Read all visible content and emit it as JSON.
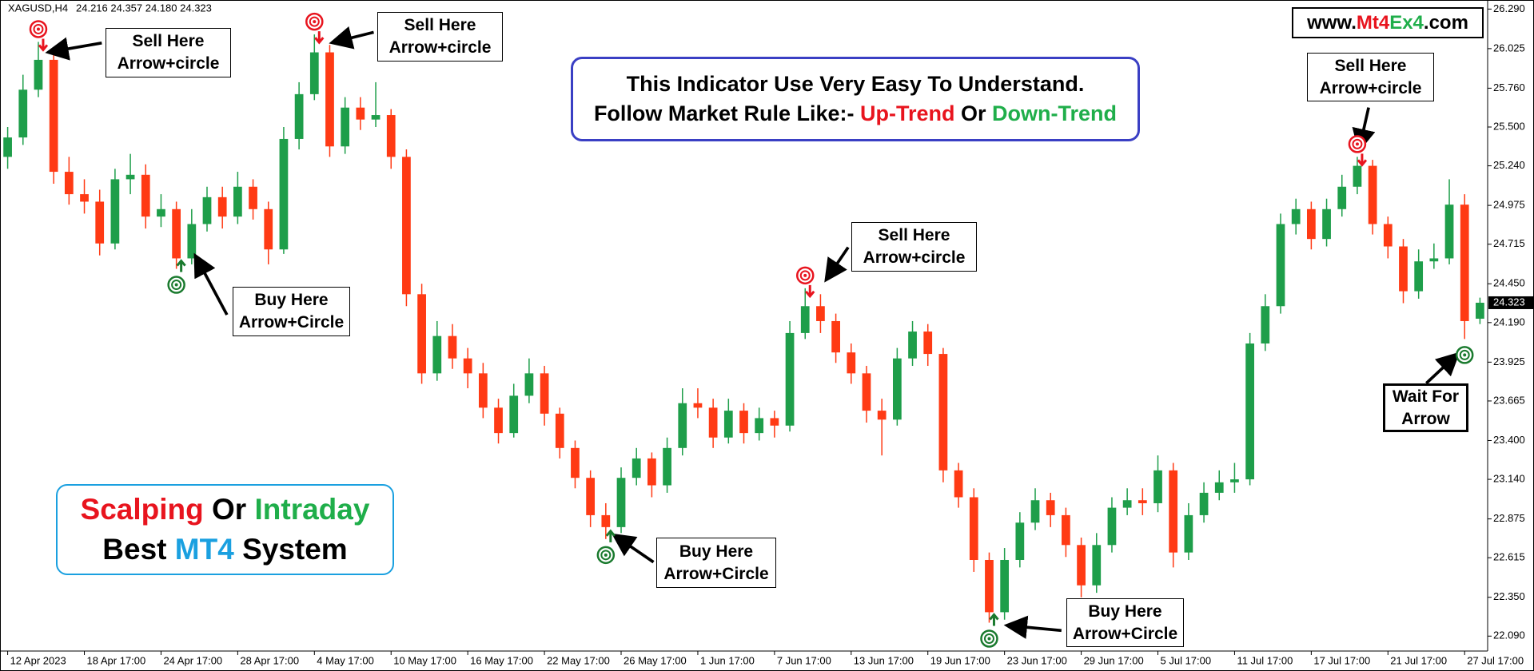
{
  "chart_data": {
    "type": "candlestick",
    "header": {
      "symbol": "XAGUSD,H4",
      "ohlc": "24.216 24.357 24.180 24.323"
    },
    "x": [
      "12 Apr 2023",
      null,
      null,
      null,
      null,
      "18 Apr 17:00",
      null,
      null,
      null,
      null,
      "24 Apr 17:00",
      null,
      null,
      null,
      null,
      "28 Apr 17:00",
      null,
      null,
      null,
      null,
      "4 May 17:00",
      null,
      null,
      null,
      null,
      "10 May 17:00",
      null,
      null,
      null,
      null,
      "16 May 17:00",
      null,
      null,
      null,
      null,
      "22 May 17:00",
      null,
      null,
      null,
      null,
      "26 May 17:00",
      null,
      null,
      null,
      null,
      "1 Jun 17:00",
      null,
      null,
      null,
      null,
      "7 Jun 17:00",
      null,
      null,
      null,
      null,
      "13 Jun 17:00",
      null,
      null,
      null,
      null,
      "19 Jun 17:00",
      null,
      null,
      null,
      null,
      "23 Jun 17:00",
      null,
      null,
      null,
      null,
      "29 Jun 17:00",
      null,
      null,
      null,
      null,
      "5 Jul 17:00",
      null,
      null,
      null,
      null,
      "11 Jul 17:00",
      null,
      null,
      null,
      null,
      "17 Jul 17:00",
      null,
      null,
      null,
      null,
      "21 Jul 17:00",
      null,
      null,
      null,
      null,
      "27 Jul 17:00",
      null
    ],
    "open": [
      25.3,
      25.43,
      25.75,
      25.95,
      25.2,
      25.05,
      25.0,
      24.72,
      25.15,
      25.18,
      24.9,
      24.95,
      24.62,
      24.85,
      25.03,
      24.9,
      25.1,
      24.95,
      24.68,
      25.42,
      25.72,
      26.0,
      25.37,
      25.63,
      25.55,
      25.58,
      25.3,
      24.38,
      23.85,
      24.1,
      23.95,
      23.85,
      23.62,
      23.45,
      23.7,
      23.85,
      23.58,
      23.35,
      23.15,
      22.9,
      22.82,
      23.15,
      23.28,
      23.1,
      23.35,
      23.65,
      23.62,
      23.42,
      23.6,
      23.45,
      23.55,
      23.5,
      24.12,
      24.3,
      24.2,
      23.99,
      23.85,
      23.6,
      23.54,
      23.95,
      24.13,
      23.98,
      23.2,
      23.02,
      22.6,
      22.25,
      22.6,
      22.85,
      23.0,
      22.9,
      22.7,
      22.43,
      22.7,
      22.95,
      23.0,
      22.98,
      23.2,
      22.65,
      22.9,
      23.05,
      23.12,
      23.14,
      24.05,
      24.3,
      24.85,
      24.95,
      24.75,
      24.95,
      25.1,
      25.24,
      24.85,
      24.7,
      24.4,
      24.6,
      24.62,
      24.98,
      24.216
    ],
    "high": [
      25.5,
      25.85,
      26.07,
      26.0,
      25.3,
      25.15,
      25.08,
      25.22,
      25.32,
      25.25,
      25.05,
      25.0,
      24.95,
      25.1,
      25.1,
      25.2,
      25.15,
      25.0,
      25.5,
      25.8,
      26.12,
      26.05,
      25.7,
      25.7,
      25.8,
      25.62,
      25.35,
      24.45,
      24.2,
      24.18,
      24.02,
      23.92,
      23.68,
      23.78,
      23.95,
      23.9,
      23.62,
      23.4,
      23.2,
      22.98,
      23.22,
      23.35,
      23.32,
      23.42,
      23.75,
      23.75,
      23.68,
      23.68,
      23.65,
      23.62,
      23.6,
      24.2,
      24.42,
      24.38,
      24.25,
      24.05,
      23.9,
      23.68,
      24.02,
      24.2,
      24.18,
      24.02,
      23.25,
      23.08,
      22.65,
      22.68,
      22.92,
      23.08,
      23.05,
      22.95,
      22.75,
      22.78,
      23.02,
      23.08,
      23.08,
      23.3,
      23.25,
      22.98,
      23.12,
      23.2,
      23.25,
      24.12,
      24.38,
      24.92,
      25.02,
      25.0,
      25.02,
      25.18,
      25.3,
      25.28,
      24.9,
      24.75,
      24.68,
      24.72,
      25.15,
      25.05,
      24.357
    ],
    "low": [
      25.22,
      25.38,
      25.7,
      25.12,
      24.98,
      24.92,
      24.64,
      24.68,
      25.05,
      24.82,
      24.83,
      24.55,
      24.58,
      24.8,
      24.82,
      24.85,
      24.88,
      24.58,
      24.65,
      25.35,
      25.68,
      25.3,
      25.32,
      25.48,
      25.5,
      25.22,
      24.3,
      23.78,
      23.8,
      23.88,
      23.75,
      23.55,
      23.38,
      23.42,
      23.65,
      23.5,
      23.28,
      23.08,
      22.82,
      22.74,
      22.78,
      23.1,
      23.02,
      23.05,
      23.3,
      23.55,
      23.35,
      23.38,
      23.38,
      23.4,
      23.42,
      23.46,
      24.08,
      24.12,
      23.92,
      23.78,
      23.52,
      23.3,
      23.5,
      23.9,
      23.9,
      23.12,
      22.95,
      22.52,
      22.18,
      22.2,
      22.55,
      22.8,
      22.82,
      22.62,
      22.35,
      22.38,
      22.65,
      22.9,
      22.9,
      22.92,
      22.55,
      22.6,
      22.85,
      23.0,
      23.05,
      23.1,
      24.0,
      24.25,
      24.78,
      24.68,
      24.7,
      24.9,
      25.05,
      24.78,
      24.62,
      24.32,
      24.35,
      24.55,
      24.58,
      24.08,
      24.18
    ],
    "close": [
      25.43,
      25.75,
      25.95,
      25.2,
      25.05,
      25.0,
      24.72,
      25.15,
      25.18,
      24.9,
      24.95,
      24.62,
      24.85,
      25.03,
      24.9,
      25.1,
      24.95,
      24.68,
      25.42,
      25.72,
      26.0,
      25.37,
      25.63,
      25.55,
      25.58,
      25.3,
      24.38,
      23.85,
      24.1,
      23.95,
      23.85,
      23.62,
      23.45,
      23.7,
      23.85,
      23.58,
      23.35,
      23.15,
      22.9,
      22.82,
      23.15,
      23.28,
      23.1,
      23.35,
      23.65,
      23.62,
      23.42,
      23.6,
      23.45,
      23.55,
      23.5,
      24.12,
      24.3,
      24.2,
      23.99,
      23.85,
      23.6,
      23.54,
      23.95,
      24.13,
      23.98,
      23.2,
      23.02,
      22.6,
      22.25,
      22.6,
      22.85,
      23.0,
      22.9,
      22.7,
      22.43,
      22.7,
      22.95,
      23.0,
      22.98,
      23.2,
      22.65,
      22.9,
      23.05,
      23.12,
      23.14,
      24.05,
      24.3,
      24.85,
      24.95,
      24.75,
      24.95,
      25.1,
      25.24,
      24.85,
      24.7,
      24.4,
      24.6,
      24.62,
      24.98,
      24.2,
      24.323
    ],
    "up_color": "#1e9e4a",
    "down_color": "#ff3a14",
    "ylim": [
      21.99,
      26.34
    ],
    "yticks": [
      {
        "value": 26.29,
        "label": "26.290"
      },
      26.025,
      {
        "value": 25.76,
        "label": "25.760"
      },
      {
        "value": 25.5,
        "label": "25.500"
      },
      {
        "value": 25.24,
        "label": "25.240"
      },
      24.975,
      24.715,
      {
        "value": 24.45,
        "label": "24.450"
      },
      {
        "value": 24.19,
        "label": "24.190"
      },
      23.925,
      23.665,
      {
        "value": 23.4,
        "label": "23.400"
      },
      {
        "value": 23.14,
        "label": "23.140"
      },
      22.875,
      22.615,
      {
        "value": 22.35,
        "label": "22.350"
      },
      {
        "value": 22.09,
        "label": "22.090"
      }
    ],
    "last_price": 24.323,
    "signals": [
      {
        "kind": "sell",
        "at": 2
      },
      {
        "kind": "buy",
        "at": 11
      },
      {
        "kind": "sell",
        "at": 20
      },
      {
        "kind": "buy",
        "at": 39
      },
      {
        "kind": "sell",
        "at": 52
      },
      {
        "kind": "buy",
        "at": 64
      },
      {
        "kind": "sell",
        "at": 88
      },
      {
        "kind": "wait",
        "at": 95
      }
    ],
    "signal_colors": {
      "sell": "#e8141e",
      "buy": "#1a7a2e",
      "wait": "#1a7a2e"
    },
    "callouts": [
      [
        "Sell Here",
        "Arrow+circle"
      ],
      [
        "Sell Here",
        "Arrow+circle"
      ],
      [
        "Sell Here",
        "Arrow+circle"
      ],
      [
        "Sell Here",
        "Arrow+circle"
      ],
      [
        "Buy Here",
        "Arrow+Circle"
      ],
      [
        "Buy Here",
        "Arrow+Circle"
      ],
      [
        "Buy Here",
        "Arrow+Circle"
      ],
      [
        "Wait For",
        "Arrow"
      ]
    ],
    "info": {
      "line1": "This Indicator Use Very Easy To Understand.",
      "line2": [
        "Follow Market Rule Like:-",
        "Up-Trend",
        "Or",
        "Down-Trend"
      ]
    },
    "promo": {
      "line1": [
        "Scalping",
        "Or",
        "Intraday"
      ],
      "line2": [
        "Best",
        "MT4",
        "System"
      ]
    },
    "website": [
      "www.",
      "Mt4",
      "Ex4",
      ".com"
    ]
  }
}
